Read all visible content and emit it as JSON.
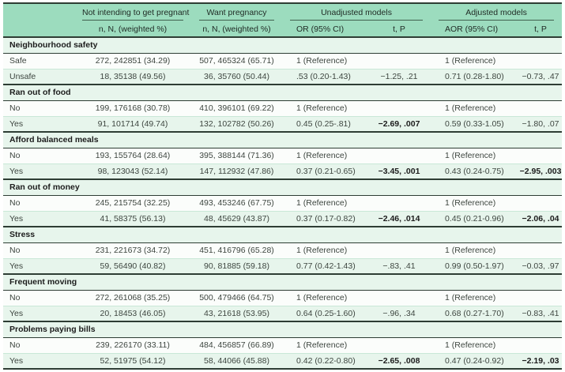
{
  "table": {
    "header": {
      "groups": [
        {
          "label": "Not intending to get pregnant",
          "sub": [
            "n, N, (weighted %)"
          ]
        },
        {
          "label": "Want pregnancy",
          "sub": [
            "n, N, (weighted %)"
          ]
        },
        {
          "label": "Unadjusted models",
          "sub": [
            "OR (95% CI)",
            "t, P"
          ]
        },
        {
          "label": "Adjusted models",
          "sub": [
            "AOR (95% CI)",
            "t, P"
          ]
        }
      ]
    },
    "sections": [
      {
        "title": "Neighbourhood safety",
        "rows": [
          {
            "label": "Safe",
            "not_intending": "272, 242851 (34.29)",
            "want_pregnancy": "507, 465324 (65.71)",
            "or": "1 (Reference)",
            "t_p": "",
            "t_p_bold": false,
            "aor": "1 (Reference)",
            "aor_t_p": "",
            "aor_t_p_bold": false
          },
          {
            "label": "Unsafe",
            "not_intending": "18, 35138 (49.56)",
            "want_pregnancy": "36, 35760 (50.44)",
            "or": ".53 (0.20-1.43)",
            "t_p": "−1.25, .21",
            "t_p_bold": false,
            "aor": "0.71 (0.28-1.80)",
            "aor_t_p": "−0.73, .47",
            "aor_t_p_bold": false
          }
        ]
      },
      {
        "title": "Ran out of food",
        "rows": [
          {
            "label": "No",
            "not_intending": "199, 176168 (30.78)",
            "want_pregnancy": "410, 396101 (69.22)",
            "or": "1 (Reference)",
            "t_p": "",
            "t_p_bold": false,
            "aor": "1 (Reference)",
            "aor_t_p": "",
            "aor_t_p_bold": false
          },
          {
            "label": "Yes",
            "not_intending": "91, 101714 (49.74)",
            "want_pregnancy": "132, 102782 (50.26)",
            "or": "0.45 (0.25-.81)",
            "t_p": "−2.69, .007",
            "t_p_bold": true,
            "aor": "0.59 (0.33-1.05)",
            "aor_t_p": "−1.80, .07",
            "aor_t_p_bold": false
          }
        ]
      },
      {
        "title": "Afford balanced meals",
        "rows": [
          {
            "label": "No",
            "not_intending": "193, 155764 (28.64)",
            "want_pregnancy": "395, 388144 (71.36)",
            "or": "1 (Reference)",
            "t_p": "",
            "t_p_bold": false,
            "aor": "1 (Reference)",
            "aor_t_p": "",
            "aor_t_p_bold": false
          },
          {
            "label": "Yes",
            "not_intending": "98, 123043 (52.14)",
            "want_pregnancy": "147, 112932 (47.86)",
            "or": "0.37 (0.21-0.65)",
            "t_p": "−3.45, .001",
            "t_p_bold": true,
            "aor": "0.43 (0.24-0.75)",
            "aor_t_p": "−2.95, .003",
            "aor_t_p_bold": true
          }
        ]
      },
      {
        "title": "Ran out of money",
        "rows": [
          {
            "label": "No",
            "not_intending": "245, 215754 (32.25)",
            "want_pregnancy": "493, 453246 (67.75)",
            "or": "1 (Reference)",
            "t_p": "",
            "t_p_bold": false,
            "aor": "1 (Reference)",
            "aor_t_p": "",
            "aor_t_p_bold": false
          },
          {
            "label": "Yes",
            "not_intending": "41, 58375 (56.13)",
            "want_pregnancy": "48, 45629 (43.87)",
            "or": "0.37 (0.17-0.82)",
            "t_p": "−2.46, .014",
            "t_p_bold": true,
            "aor": "0.45 (0.21-0.96)",
            "aor_t_p": "−2.06, .04",
            "aor_t_p_bold": true
          }
        ]
      },
      {
        "title": "Stress",
        "rows": [
          {
            "label": "No",
            "not_intending": "231, 221673 (34.72)",
            "want_pregnancy": "451, 416796 (65.28)",
            "or": "1 (Reference)",
            "t_p": "",
            "t_p_bold": false,
            "aor": "1 (Reference)",
            "aor_t_p": "",
            "aor_t_p_bold": false
          },
          {
            "label": "Yes",
            "not_intending": "59, 56490 (40.82)",
            "want_pregnancy": "90, 81885 (59.18)",
            "or": "0.77 (0.42-1.43)",
            "t_p": "−.83, .41",
            "t_p_bold": false,
            "aor": "0.99 (0.50-1.97)",
            "aor_t_p": "−0.03, .97",
            "aor_t_p_bold": false
          }
        ]
      },
      {
        "title": "Frequent moving",
        "rows": [
          {
            "label": "No",
            "not_intending": "272, 261068 (35.25)",
            "want_pregnancy": "500, 479466 (64.75)",
            "or": "1 (Reference)",
            "t_p": "",
            "t_p_bold": false,
            "aor": "1 (Reference)",
            "aor_t_p": "",
            "aor_t_p_bold": false
          },
          {
            "label": "Yes",
            "not_intending": "20, 18453 (46.05)",
            "want_pregnancy": "43, 21618 (53.95)",
            "or": "0.64 (0.25-1.60)",
            "t_p": "−.96, .34",
            "t_p_bold": false,
            "aor": "0.68 (0.27-1.70)",
            "aor_t_p": "−0.83, .41",
            "aor_t_p_bold": false
          }
        ]
      },
      {
        "title": "Problems paying bills",
        "rows": [
          {
            "label": "No",
            "not_intending": "239, 226170 (33.11)",
            "want_pregnancy": "484, 456857 (66.89)",
            "or": "1 (Reference)",
            "t_p": "",
            "t_p_bold": false,
            "aor": "1 (Reference)",
            "aor_t_p": "",
            "aor_t_p_bold": false
          },
          {
            "label": "Yes",
            "not_intending": "52, 51975 (54.12)",
            "want_pregnancy": "58, 44066 (45.88)",
            "or": "0.42 (0.22-0.80)",
            "t_p": "−2.65, .008",
            "t_p_bold": true,
            "aor": "0.47 (0.24-0.92)",
            "aor_t_p": "−2.19, .03",
            "aor_t_p_bold": true
          }
        ]
      }
    ]
  },
  "colors": {
    "header_bg": "#9cdcbe",
    "row_green": "#e7f5ec",
    "row_white": "#fbfdfb",
    "rule_dark": "#2e3d34",
    "rule_light": "#c9e8d7",
    "text": "#3d453f"
  }
}
